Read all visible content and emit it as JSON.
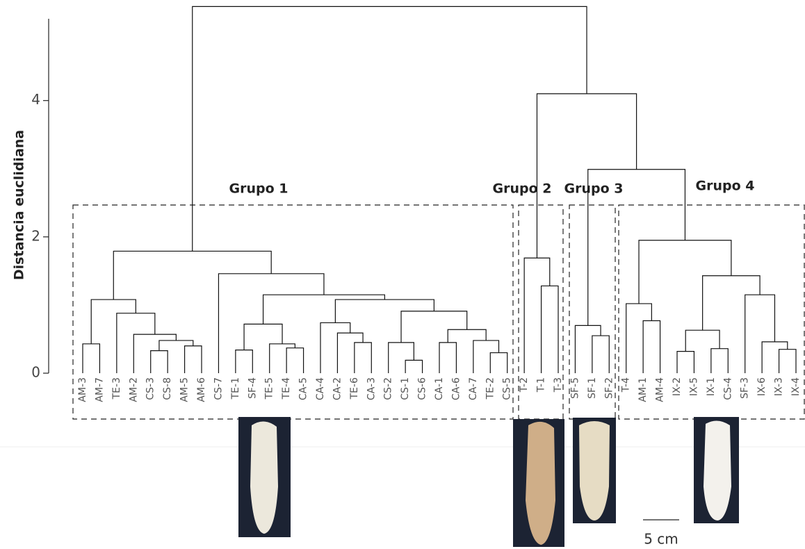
{
  "chart_data": {
    "type": "dendrogram",
    "y_label": "Distancia euclidiana",
    "ylim": [
      0,
      5.2
    ],
    "yticks": [
      0,
      2,
      4
    ],
    "leaves": [
      "AM-3",
      "AM-7",
      "TE-3",
      "AM-2",
      "CS-3",
      "CS-8",
      "AM-5",
      "AM-6",
      "CS-7",
      "TE-1",
      "SF-4",
      "TE-5",
      "TE-4",
      "CA-5",
      "CA-4",
      "CA-2",
      "TE-6",
      "CA-3",
      "CS-2",
      "CS-1",
      "CS-6",
      "CA-1",
      "CA-6",
      "CA-7",
      "TE-2",
      "CS-5",
      "T-2",
      "T-1",
      "T-3",
      "SF-5",
      "SF-1",
      "SF-2",
      "T-4",
      "AM-1",
      "AM-4",
      "IX-2",
      "IX-5",
      "IX-1",
      "CS-4",
      "SF-3",
      "IX-6",
      "IX-3",
      "IX-4"
    ],
    "merges": [
      [
        0,
        1,
        0.43
      ],
      [
        4,
        5,
        0.33
      ],
      [
        6,
        7,
        0.4
      ],
      [
        44,
        45,
        0.48
      ],
      [
        3,
        46,
        0.57
      ],
      [
        2,
        47,
        0.88
      ],
      [
        43,
        48,
        1.08
      ],
      [
        9,
        10,
        0.34
      ],
      [
        12,
        13,
        0.37
      ],
      [
        11,
        51,
        0.43
      ],
      [
        50,
        52,
        0.72
      ],
      [
        16,
        17,
        0.45
      ],
      [
        15,
        54,
        0.59
      ],
      [
        14,
        55,
        0.74
      ],
      [
        19,
        20,
        0.19
      ],
      [
        18,
        57,
        0.45
      ],
      [
        21,
        22,
        0.45
      ],
      [
        24,
        25,
        0.3
      ],
      [
        23,
        60,
        0.48
      ],
      [
        59,
        61,
        0.64
      ],
      [
        58,
        62,
        0.91
      ],
      [
        56,
        63,
        1.08
      ],
      [
        53,
        64,
        1.15
      ],
      [
        8,
        65,
        1.46
      ],
      [
        49,
        66,
        1.79
      ],
      [
        27,
        28,
        1.28
      ],
      [
        26,
        68,
        1.69
      ],
      [
        30,
        31,
        0.55
      ],
      [
        29,
        70,
        0.7
      ],
      [
        33,
        34,
        0.77
      ],
      [
        32,
        72,
        1.02
      ],
      [
        35,
        36,
        0.32
      ],
      [
        37,
        38,
        0.36
      ],
      [
        74,
        75,
        0.63
      ],
      [
        41,
        42,
        0.35
      ],
      [
        40,
        77,
        0.46
      ],
      [
        39,
        78,
        1.15
      ],
      [
        76,
        79,
        1.43
      ],
      [
        73,
        80,
        1.95
      ],
      [
        71,
        81,
        2.99
      ],
      [
        69,
        82,
        4.1
      ],
      [
        67,
        83,
        5.38
      ]
    ],
    "groups": [
      "Grupo 1",
      "Grupo 2",
      "Grupo 3",
      "Grupo 4"
    ],
    "scale_bar_label": "5 cm"
  }
}
